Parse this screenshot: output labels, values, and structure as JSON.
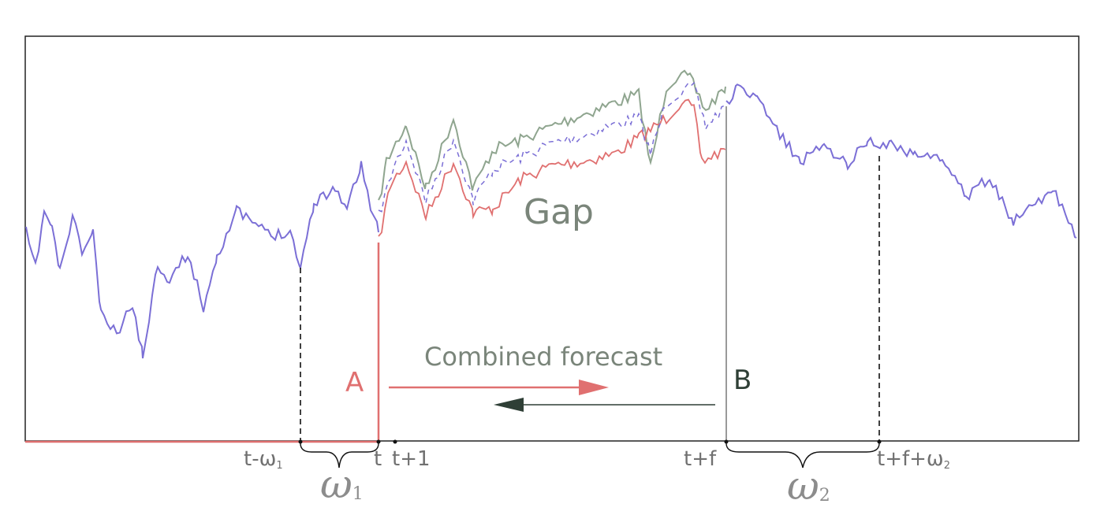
{
  "labels": {
    "gap": "Gap",
    "combined_forecast": "Combined forecast",
    "point_a": "A",
    "point_b": "B"
  },
  "ticks": {
    "t_minus_w1": "t-ω",
    "t_minus_w1_sub": "1",
    "t": "t",
    "t_plus_1": "t+1",
    "t_plus_f": "t+f",
    "t_plus_f_plus_w2": "t+f+ω",
    "t_plus_f_plus_w2_sub": "2"
  },
  "windows": {
    "omega1": "ω",
    "omega1_sub": "1",
    "omega2": "ω",
    "omega2_sub": "2"
  },
  "colors": {
    "observed": "#7b6fd6",
    "forecast_forward": "#e07070",
    "forecast_backward": "#8fa58f",
    "combined": "#7b6fd6",
    "label_gray": "#7a857a",
    "arrow_backward": "#2f3f36"
  }
}
